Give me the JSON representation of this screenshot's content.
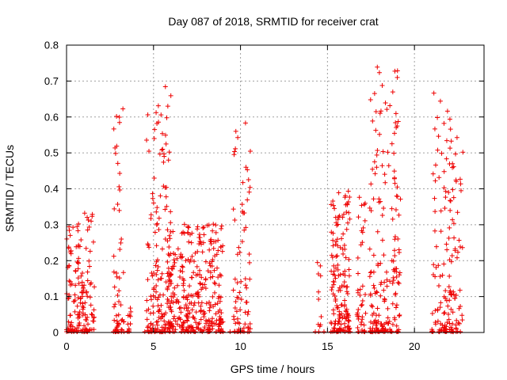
{
  "chart_data": {
    "type": "scatter",
    "title": "Day 087 of 2018, SRMTID for receiver crat",
    "xlabel": "GPS time / hours",
    "ylabel": "SRMTID / TECUs",
    "xlim": [
      0,
      24
    ],
    "ylim": [
      0,
      0.8
    ],
    "x_ticks": [
      "0",
      "5",
      "10",
      "15",
      "20"
    ],
    "y_ticks": [
      "0",
      "0.1",
      "0.2",
      "0.3",
      "0.4",
      "0.5",
      "0.6",
      "0.7",
      "0.8"
    ],
    "grid": true,
    "marker": "+",
    "series": [
      {
        "name": "SRMTID",
        "color": "#ee0000",
        "clusters": [
          {
            "t0": 0.0,
            "t1": 1.6,
            "n": 150,
            "vmax": 0.34,
            "shape": 0.5,
            "seed": 11
          },
          {
            "t0": 2.7,
            "t1": 3.3,
            "n": 55,
            "vmax": 0.68,
            "shape": 0.45,
            "seed": 12
          },
          {
            "t0": 3.5,
            "t1": 3.8,
            "n": 12,
            "vmax": 0.08,
            "shape": 0.8,
            "seed": 13
          },
          {
            "t0": 4.6,
            "t1": 6.0,
            "n": 150,
            "vmax": 0.7,
            "shape": 0.42,
            "seed": 14
          },
          {
            "t0": 5.8,
            "t1": 9.0,
            "n": 330,
            "vmax": 0.31,
            "shape": 0.6,
            "seed": 15
          },
          {
            "t0": 9.5,
            "t1": 10.6,
            "n": 70,
            "vmax": 0.6,
            "shape": 0.48,
            "seed": 16
          },
          {
            "t0": 14.4,
            "t1": 14.7,
            "n": 10,
            "vmax": 0.31,
            "shape": 0.6,
            "seed": 17
          },
          {
            "t0": 15.2,
            "t1": 16.3,
            "n": 150,
            "vmax": 0.4,
            "shape": 0.55,
            "seed": 18
          },
          {
            "t0": 16.7,
            "t1": 17.2,
            "n": 40,
            "vmax": 0.41,
            "shape": 0.55,
            "seed": 19
          },
          {
            "t0": 17.4,
            "t1": 19.2,
            "n": 180,
            "vmax": 0.77,
            "shape": 0.42,
            "seed": 20
          },
          {
            "t0": 21.0,
            "t1": 22.8,
            "n": 150,
            "vmax": 0.7,
            "shape": 0.45,
            "seed": 21
          }
        ],
        "zero_points": [
          0.0,
          0.3,
          0.6,
          0.9,
          1.2,
          2.7,
          3.0,
          3.3,
          3.6,
          4.5,
          4.8,
          5.5,
          6.2,
          6.6,
          7.0,
          7.4,
          7.8,
          8.2,
          8.6,
          9.0,
          9.4,
          9.8,
          10.2,
          10.5,
          14.3,
          14.5,
          14.8,
          15.2,
          15.6,
          16.0,
          16.3,
          16.8,
          17.1,
          17.5,
          17.9,
          18.3,
          18.7,
          19.0,
          21.0,
          21.4,
          21.8,
          22.1,
          22.4
        ]
      }
    ]
  }
}
